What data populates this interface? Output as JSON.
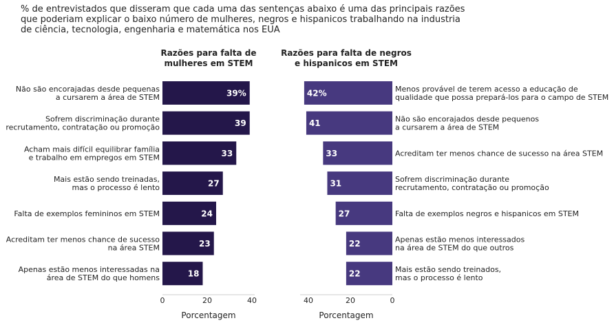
{
  "title": "% de entrevistados que disseram que cada uma das sentenças abaixo é uma das principais razões\nque poderiam explicar o baixo número de mulheres, negros e hispanicos trabalhando na industria\nde ciência, tecnologia, engenharia e matemática nos EUA",
  "chart_data": [
    {
      "type": "bar",
      "orientation": "horizontal",
      "title": "Razões para falta de\nmulheres em STEM",
      "xlabel": "Porcentagem",
      "xlim": [
        0,
        40
      ],
      "xticks": [
        "0",
        "20",
        "40"
      ],
      "color": "#24174a",
      "categories": [
        "Não são encorajadas desde pequenas\na cursarem a área de STEM",
        "Sofrem discriminação durante\nrecrutamento, contratação ou promoção",
        "Acham mais difícil equilibrar família\ne trabalho em empregos em STEM",
        "Mais estão sendo treinadas,\nmas o processo é lento",
        "Falta de exemplos femininos em STEM",
        "Acreditam ter menos chance de sucesso\nna área STEM",
        "Apenas estão menos interessadas na\nárea de STEM do que homens"
      ],
      "values": [
        39,
        39,
        33,
        27,
        24,
        23,
        18
      ],
      "data_labels": [
        "39%",
        "39",
        "33",
        "27",
        "24",
        "23",
        "18"
      ]
    },
    {
      "type": "bar",
      "orientation": "horizontal",
      "title": "Razões para falta de negros\ne hispanicos em STEM",
      "xlabel": "Porcentagem",
      "xlim": [
        0,
        40
      ],
      "x_reversed": true,
      "xticks": [
        "40",
        "20",
        "0"
      ],
      "color": "#47397f",
      "categories": [
        "Menos provável de terem acesso a educação de\nqualidade que possa prepará-los para o campo de STEM",
        "Não são encorajados desde pequenos\na cursarem a área de STEM",
        "Acreditam ter menos chance de sucesso na área STEM",
        "Sofrem discriminação durante\nrecrutamento, contratação ou promoção",
        "Falta de exemplos negros e hispanicos em STEM",
        "Apenas estão menos interessados\nna área de STEM do que outros",
        "Mais estão sendo treinados,\nmas o processo é lento"
      ],
      "values": [
        42,
        41,
        33,
        31,
        27,
        22,
        22
      ],
      "data_labels": [
        "42%",
        "41",
        "33",
        "31",
        "27",
        "22",
        "22"
      ]
    }
  ]
}
